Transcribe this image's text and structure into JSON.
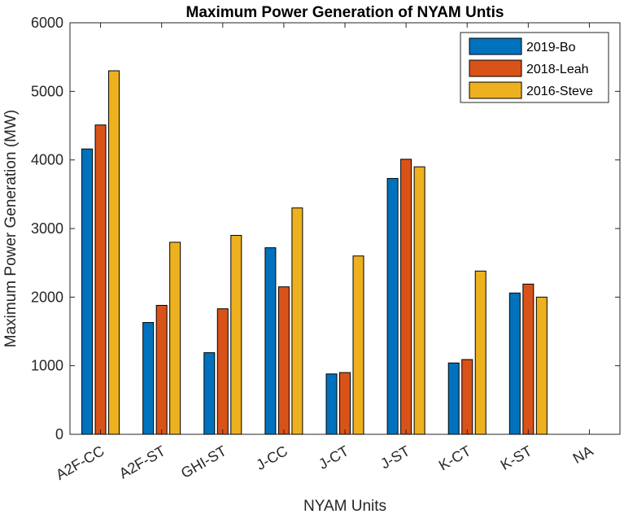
{
  "chart_data": {
    "type": "bar",
    "title": "Maximum Power Generation of NYAM Untis",
    "xlabel": "NYAM Units",
    "ylabel": "Maximum Power Generation (MW)",
    "ylim": [
      0,
      6000
    ],
    "yticks": [
      0,
      1000,
      2000,
      3000,
      4000,
      5000,
      6000
    ],
    "categories": [
      "A2F-CC",
      "A2F-ST",
      "GHI-ST",
      "J-CC",
      "J-CT",
      "J-ST",
      "K-CT",
      "K-ST",
      "NA"
    ],
    "series": [
      {
        "name": "2019-Bo",
        "color": "#0072BD",
        "values": [
          4160,
          1630,
          1190,
          2720,
          880,
          3730,
          1040,
          2060,
          null
        ]
      },
      {
        "name": "2018-Leah",
        "color": "#D95319",
        "values": [
          4510,
          1880,
          1830,
          2150,
          900,
          4010,
          1090,
          2190,
          null
        ]
      },
      {
        "name": "2016-Steve",
        "color": "#EDB120",
        "values": [
          5300,
          2800,
          2900,
          3300,
          2600,
          3900,
          2380,
          2000,
          null
        ]
      }
    ],
    "legend_position": "top-right",
    "grid": false
  }
}
